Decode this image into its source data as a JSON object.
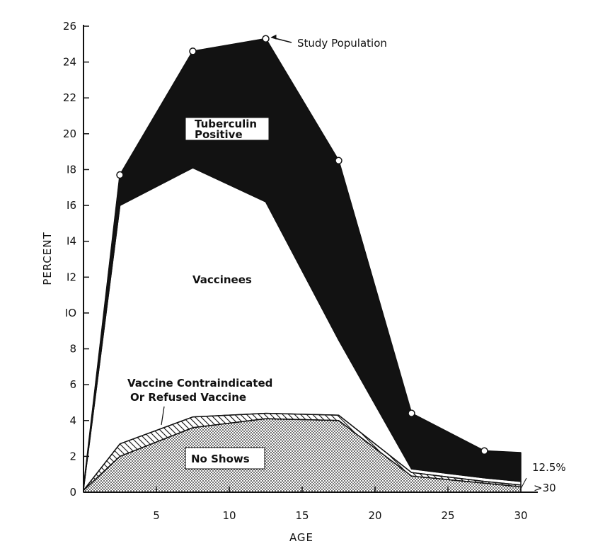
{
  "chart_data": {
    "type": "area",
    "xlabel": "AGE",
    "ylabel": "PERCENT",
    "xlim": [
      0,
      30
    ],
    "ylim": [
      0,
      26
    ],
    "x_ticks": [
      5,
      10,
      15,
      20,
      25,
      30
    ],
    "x_tick_labels": [
      "5",
      "10",
      "15",
      "20",
      "25",
      "30"
    ],
    "y_ticks": [
      0,
      2,
      4,
      6,
      8,
      10,
      12,
      14,
      16,
      18,
      20,
      22,
      24,
      26
    ],
    "y_tick_labels": [
      "0",
      "2",
      "4",
      "6",
      "8",
      "IO",
      "I2",
      "I4",
      "I6",
      "I8",
      "20",
      "22",
      "24",
      "26"
    ],
    "series": [
      {
        "name": "Study Population",
        "x": [
          0,
          2.5,
          7.5,
          12.5,
          17.5,
          22.5,
          27.5,
          30
        ],
        "values": [
          0.2,
          17.7,
          24.6,
          25.3,
          18.5,
          4.4,
          2.3,
          2.2
        ]
      },
      {
        "name": "Tuberculin Positive",
        "x": [
          0,
          2.5,
          7.5,
          12.5,
          17.5,
          22.5,
          27.5,
          30
        ],
        "values": [
          0.2,
          16.0,
          18.1,
          16.2,
          8.5,
          1.3,
          0.8,
          0.6
        ]
      },
      {
        "name": "Vaccine Contraindicated Or Refused Vaccine",
        "x": [
          0,
          2.5,
          7.5,
          12.5,
          17.5,
          22.5,
          27.5,
          30
        ],
        "values": [
          0.1,
          2.7,
          4.2,
          4.4,
          4.3,
          1.1,
          0.6,
          0.4
        ]
      },
      {
        "name": "No Shows",
        "x": [
          0,
          2.5,
          7.5,
          12.5,
          17.5,
          22.5,
          27.5,
          30
        ],
        "values": [
          0.1,
          2.0,
          3.6,
          4.1,
          4.0,
          0.9,
          0.5,
          0.3
        ]
      }
    ],
    "marker_x": [
      2.5,
      7.5,
      12.5,
      17.5,
      22.5,
      27.5
    ],
    "annotations": {
      "study_population": "Study Population",
      "tuberculin_line1": "Tuberculin",
      "tuberculin_line2": "Positive",
      "vaccinees": "Vaccinees",
      "contra_line1": "Vaccine Contraindicated",
      "contra_line2": "Or Refused Vaccine",
      "no_shows": "No Shows",
      "pct_note": "12.5%",
      "age_note": ">30"
    }
  }
}
